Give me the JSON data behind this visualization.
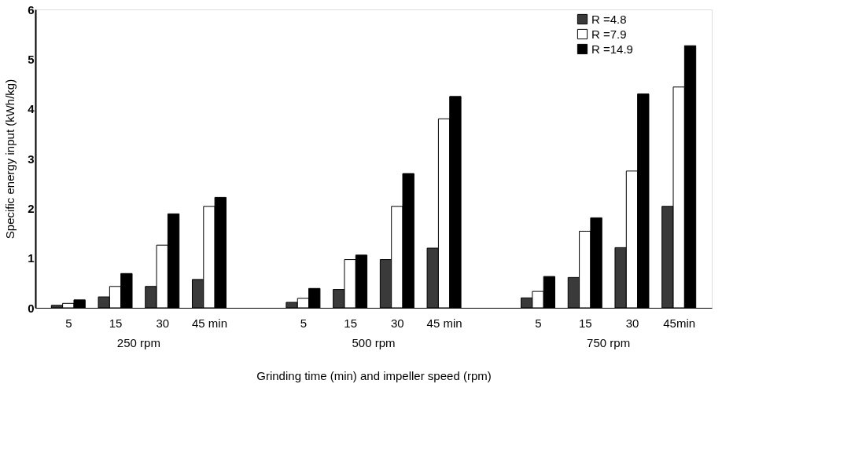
{
  "chart_data": {
    "type": "bar",
    "xlabel": "Grinding time (min) and impeller speed (rpm)",
    "ylabel": "Specific energy input (kWh/kg)",
    "categories": [
      "5",
      "15",
      "30",
      "45 min",
      null,
      "5",
      "15",
      "30",
      "45 min",
      null,
      "5",
      "15",
      "30",
      "45min"
    ],
    "series": [
      {
        "name": "R =4.8",
        "color": "#3a3a3a",
        "values": [
          0.05,
          0.22,
          0.43,
          0.57,
          null,
          0.11,
          0.37,
          0.97,
          1.2,
          null,
          0.2,
          0.61,
          1.21,
          2.04
        ]
      },
      {
        "name": "R =7.9",
        "color": "#ffffff",
        "values": [
          0.09,
          0.43,
          1.26,
          2.04,
          null,
          0.19,
          0.97,
          2.04,
          3.8,
          null,
          0.33,
          1.54,
          2.75,
          4.44
        ]
      },
      {
        "name": "R =14.9",
        "color": "#000000",
        "values": [
          0.16,
          0.69,
          1.89,
          2.22,
          null,
          0.39,
          1.06,
          2.7,
          4.25,
          null,
          0.63,
          1.81,
          4.3,
          5.27
        ]
      }
    ],
    "ylim": [
      0,
      6
    ],
    "yticks": [
      0,
      1,
      2,
      3,
      4,
      5,
      6
    ],
    "legend": "top right",
    "annotations": [
      "250 rpm",
      "500 rpm",
      "750 rpm"
    ]
  }
}
